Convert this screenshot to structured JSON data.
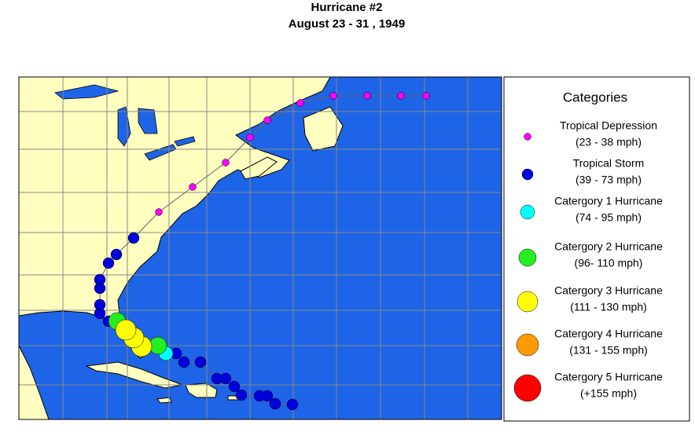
{
  "header": {
    "title": "Hurricane #2",
    "subtitle": "August 23 - 31 , 1949"
  },
  "legend": {
    "title": "Categories",
    "items": [
      {
        "label": "Tropical Depression",
        "range": "(23 - 38 mph)",
        "color": "#ff00ff"
      },
      {
        "label": "Tropical Storm",
        "range": "(39 - 73 mph)",
        "color": "#0000dd"
      },
      {
        "label": "Catergory 1 Hurricane",
        "range": "(74 - 95 mph)",
        "color": "#00ffff"
      },
      {
        "label": "Catergory 2 Hurricane",
        "range": "(96- 110 mph)",
        "color": "#22ee22"
      },
      {
        "label": "Catergory 3 Hurricane",
        "range": "(111 - 130 mph)",
        "color": "#ffff00"
      },
      {
        "label": "Catergory 4 Hurricane",
        "range": "(131 - 155 mph)",
        "color": "#ff9900"
      },
      {
        "label": "Catergory 5 Hurricane",
        "range": "(+155 mph)",
        "color": "#ff0000"
      }
    ]
  }
}
